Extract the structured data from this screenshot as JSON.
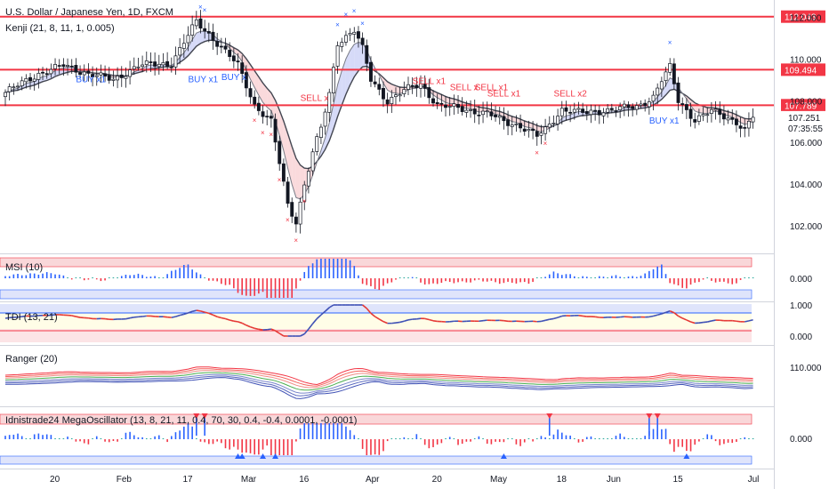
{
  "header": {
    "title": "U.S. Dollar / Japanese Yen, 1D, FXCM",
    "indicator": "Kenji (21, 8, 11, 1, 0.005)"
  },
  "price_axis": {
    "ticks": [
      "112.000",
      "110.000",
      "108.000",
      "106.000",
      "104.000",
      "102.000"
    ],
    "ticks_values": [
      112,
      110,
      108,
      106,
      104,
      102
    ],
    "ylim": [
      100.8,
      112.5
    ],
    "current_price": "107.251",
    "countdown": "07:35:55"
  },
  "horizontal_lines": [
    {
      "value": 112.043,
      "label": "112.043"
    },
    {
      "value": 109.494,
      "label": "109.494"
    },
    {
      "value": 107.789,
      "label": "107.789"
    }
  ],
  "time_axis": {
    "labels": [
      "20",
      "Feb",
      "17",
      "Mar",
      "16",
      "Apr",
      "20",
      "May",
      "18",
      "Jun",
      "15",
      "Jul"
    ],
    "label_bars": [
      12,
      28,
      44,
      58,
      72,
      88,
      104,
      118,
      134,
      146,
      162,
      180
    ]
  },
  "signals": [
    {
      "text": "BUY x1",
      "bar": 17,
      "price": 108.9,
      "color": "#2962ff"
    },
    {
      "text": "BUY x1",
      "bar": 44,
      "price": 108.9,
      "color": "#2962ff"
    },
    {
      "text": "BUY x",
      "bar": 52,
      "price": 109.0,
      "color": "#2962ff"
    },
    {
      "text": "SELL x",
      "bar": 71,
      "price": 108.0,
      "color": "#f23645"
    },
    {
      "text": "SELL x1",
      "bar": 98,
      "price": 108.8,
      "color": "#f23645"
    },
    {
      "text": "SELL x",
      "bar": 107,
      "price": 108.5,
      "color": "#f23645"
    },
    {
      "text": "SELL x1",
      "bar": 113,
      "price": 108.5,
      "color": "#f23645"
    },
    {
      "text": "SELL x1",
      "bar": 116,
      "price": 108.2,
      "color": "#f23645"
    },
    {
      "text": "SELL x2",
      "bar": 132,
      "price": 108.2,
      "color": "#f23645"
    },
    {
      "text": "BUY x1",
      "bar": 155,
      "price": 106.9,
      "color": "#2962ff"
    }
  ],
  "panes": {
    "msi": {
      "title": "MSI (10)",
      "tick": "0.000"
    },
    "tdi": {
      "title": "TDI (13, 21)",
      "tick_top": "1.000",
      "tick_bottom": "0.000"
    },
    "ranger": {
      "title": "Ranger (20)",
      "tick": "110.000"
    },
    "mega": {
      "title": "Idnistrade24 MegaOscillator (13, 8, 21, 11, 0.4, 70, 30, 0.4, -0.4, 0.0001, -0.0001)",
      "tick": "0.000"
    }
  },
  "chart_data": {
    "type": "candlestick",
    "title": "U.S. Dollar / Japanese Yen, 1D, FXCM",
    "close_keypoints": [
      [
        0,
        108.4
      ],
      [
        8,
        109.3
      ],
      [
        14,
        109.7
      ],
      [
        20,
        109.3
      ],
      [
        26,
        109.0
      ],
      [
        32,
        109.7
      ],
      [
        40,
        109.8
      ],
      [
        46,
        111.8
      ],
      [
        50,
        111.0
      ],
      [
        56,
        109.7
      ],
      [
        60,
        107.8
      ],
      [
        64,
        107.0
      ],
      [
        66,
        105.0
      ],
      [
        68,
        103.0
      ],
      [
        70,
        102.2
      ],
      [
        72,
        104.0
      ],
      [
        74,
        105.5
      ],
      [
        76,
        106.7
      ],
      [
        78,
        108.3
      ],
      [
        80,
        110.8
      ],
      [
        84,
        111.4
      ],
      [
        86,
        110.5
      ],
      [
        88,
        109.0
      ],
      [
        92,
        108.0
      ],
      [
        96,
        108.5
      ],
      [
        100,
        108.8
      ],
      [
        104,
        107.8
      ],
      [
        110,
        107.6
      ],
      [
        116,
        107.4
      ],
      [
        120,
        107.0
      ],
      [
        124,
        106.8
      ],
      [
        128,
        106.3
      ],
      [
        130,
        106.6
      ],
      [
        134,
        107.6
      ],
      [
        140,
        107.4
      ],
      [
        146,
        107.6
      ],
      [
        152,
        107.7
      ],
      [
        156,
        108.2
      ],
      [
        158,
        109.0
      ],
      [
        160,
        109.6
      ],
      [
        162,
        108.0
      ],
      [
        166,
        107.1
      ],
      [
        170,
        107.5
      ],
      [
        176,
        107.0
      ],
      [
        178,
        106.6
      ],
      [
        180,
        107.25
      ]
    ],
    "ylim": [
      100.8,
      112.5
    ]
  }
}
